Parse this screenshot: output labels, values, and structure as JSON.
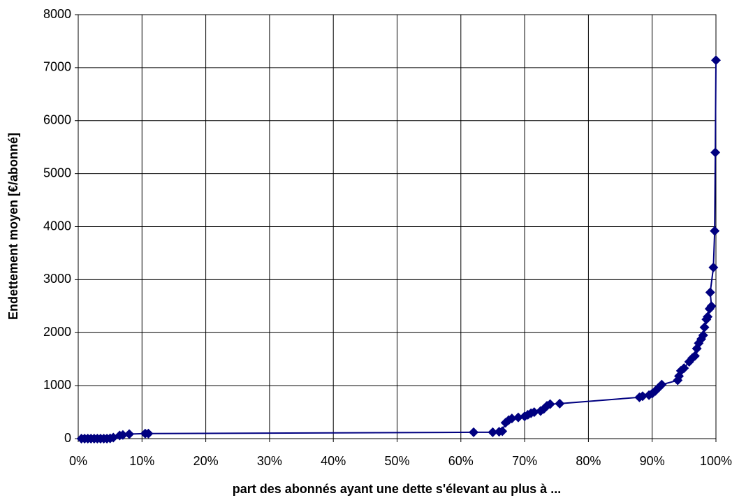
{
  "chart_data": {
    "type": "line",
    "x_label": "part des abonnés ayant une dette s'élevant au plus à ...",
    "y_label": "Endettement moyen [€/abonné]",
    "x": [
      0.5,
      1,
      1.5,
      2,
      2.5,
      3,
      3.5,
      4,
      4.5,
      5,
      5.5,
      6.5,
      7,
      8,
      10.5,
      11,
      62,
      65,
      66,
      66.5,
      67,
      67.5,
      68,
      69,
      70,
      70.5,
      71,
      71.5,
      72.5,
      73,
      73.5,
      74,
      75.5,
      88,
      88.5,
      89.5,
      90,
      90.5,
      91,
      91.5,
      94,
      94.2,
      94.5,
      95,
      95.8,
      96.3,
      96.7,
      97,
      97.3,
      97.7,
      98,
      98.2,
      98.5,
      98.7,
      99,
      99.3,
      99.1,
      99.6,
      99.8,
      99.9,
      100
    ],
    "values": [
      0,
      0,
      0,
      0,
      0,
      0,
      0,
      0,
      0,
      5,
      20,
      60,
      70,
      85,
      95,
      95,
      120,
      120,
      130,
      140,
      300,
      350,
      380,
      400,
      420,
      450,
      480,
      500,
      520,
      560,
      620,
      650,
      660,
      780,
      800,
      820,
      850,
      900,
      960,
      1020,
      1100,
      1180,
      1280,
      1330,
      1450,
      1520,
      1560,
      1700,
      1800,
      1880,
      1950,
      2100,
      2250,
      2300,
      2450,
      2500,
      2760,
      3230,
      3920,
      5400,
      7140
    ],
    "color": "#000080",
    "marker": "diamond",
    "xlim": [
      0,
      100
    ],
    "ylim": [
      0,
      8000
    ],
    "xticks": [
      {
        "value": 0,
        "label": "0%"
      },
      {
        "value": 10,
        "label": "10%"
      },
      {
        "value": 20,
        "label": "20%"
      },
      {
        "value": 30,
        "label": "30%"
      },
      {
        "value": 40,
        "label": "40%"
      },
      {
        "value": 50,
        "label": "50%"
      },
      {
        "value": 60,
        "label": "60%"
      },
      {
        "value": 70,
        "label": "70%"
      },
      {
        "value": 80,
        "label": "80%"
      },
      {
        "value": 90,
        "label": "90%"
      },
      {
        "value": 100,
        "label": "100%"
      }
    ],
    "yticks": [
      0,
      1000,
      2000,
      3000,
      4000,
      5000,
      6000,
      7000,
      8000
    ],
    "grid": true
  }
}
